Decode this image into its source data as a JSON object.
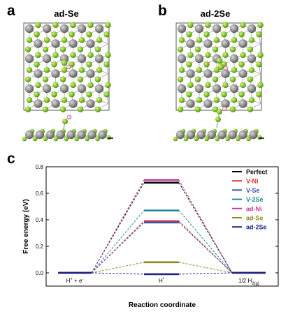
{
  "panels": {
    "a": {
      "letter": "a",
      "title": "ad-Se"
    },
    "b": {
      "letter": "b",
      "title": "ad-2Se"
    },
    "c": {
      "letter": "c"
    }
  },
  "chart_data": {
    "type": "line",
    "xlabel": "Reaction coordinate",
    "ylabel": "Free energy (eV)",
    "ylim": [
      -0.1,
      0.8
    ],
    "yticks": [
      "0.0",
      "0.2",
      "0.4",
      "0.6",
      "0.8"
    ],
    "ytick_values": [
      0.0,
      0.2,
      0.4,
      0.6,
      0.8
    ],
    "states": [
      {
        "label": "H",
        "sup": "+",
        "mid": " + e",
        "sup2": "-",
        "sub": ""
      },
      {
        "label": "H",
        "sup": "*",
        "mid": "",
        "sup2": "",
        "sub": ""
      },
      {
        "label": "1/2 H",
        "sup": "",
        "mid": "",
        "sup2": "",
        "sub": "2(g)"
      }
    ],
    "legend_position": "top-right",
    "series": [
      {
        "name": "Perfect",
        "color": "#000000",
        "values": [
          0,
          0.68,
          0
        ]
      },
      {
        "name": "V-Ni",
        "color": "#e8342b",
        "values": [
          0,
          0.39,
          0
        ]
      },
      {
        "name": "V-Se",
        "color": "#3b54a8",
        "values": [
          0,
          0.38,
          0
        ]
      },
      {
        "name": "V-2Se",
        "color": "#1a8a94",
        "values": [
          0,
          0.47,
          0
        ]
      },
      {
        "name": "ad-Ni",
        "color": "#c0399c",
        "values": [
          0,
          0.7,
          0
        ]
      },
      {
        "name": "ad-Se",
        "color": "#8a8a1e",
        "values": [
          0,
          0.08,
          0
        ]
      },
      {
        "name": "ad-2Se",
        "color": "#22248a",
        "values": [
          0,
          -0.01,
          0
        ]
      }
    ]
  }
}
